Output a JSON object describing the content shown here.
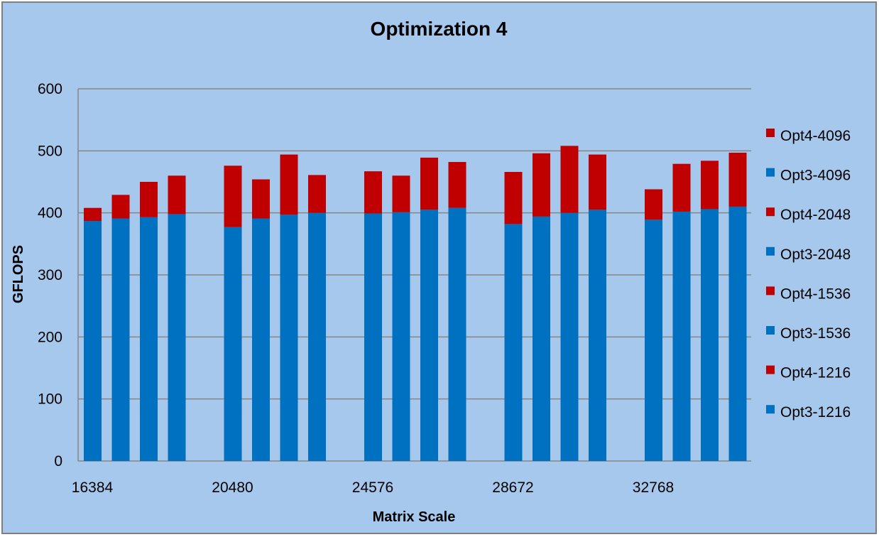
{
  "chart_data": {
    "type": "bar",
    "stacked": true,
    "title": "Optimization 4",
    "xlabel": "Matrix Scale",
    "ylabel": "GFLOPS",
    "ylim": [
      0,
      600
    ],
    "yticks": [
      0,
      100,
      200,
      300,
      400,
      500,
      600
    ],
    "grid": true,
    "legend_position": "right",
    "categories": [
      "16384",
      "20480",
      "24576",
      "28672",
      "32768"
    ],
    "group_labels": [
      "1216",
      "1536",
      "2048",
      "4096"
    ],
    "base_series": {
      "name": "Opt3",
      "color": "#0070C0",
      "values": [
        [
          387,
          391,
          393,
          398
        ],
        [
          377,
          391,
          397,
          400
        ],
        [
          399,
          401,
          405,
          408
        ],
        [
          382,
          394,
          400,
          405
        ],
        [
          389,
          402,
          406,
          410
        ]
      ]
    },
    "top_series": {
      "name": "Opt4",
      "color": "#C00000",
      "totals": [
        [
          408,
          429,
          450,
          460
        ],
        [
          476,
          454,
          494,
          461
        ],
        [
          467,
          460,
          489,
          482
        ],
        [
          466,
          496,
          508,
          494
        ],
        [
          438,
          479,
          484,
          497
        ]
      ]
    },
    "legend": [
      {
        "label": "Opt4-4096",
        "color": "#C00000"
      },
      {
        "label": "Opt3-4096",
        "color": "#0070C0"
      },
      {
        "label": "Opt4-2048",
        "color": "#C00000"
      },
      {
        "label": "Opt3-2048",
        "color": "#0070C0"
      },
      {
        "label": "Opt4-1536",
        "color": "#C00000"
      },
      {
        "label": "Opt3-1536",
        "color": "#0070C0"
      },
      {
        "label": "Opt4-1216",
        "color": "#C00000"
      },
      {
        "label": "Opt3-1216",
        "color": "#0070C0"
      }
    ],
    "colors": {
      "background": "#A6C8EC",
      "grid": "#868686",
      "border": "#7F7F7F"
    }
  }
}
